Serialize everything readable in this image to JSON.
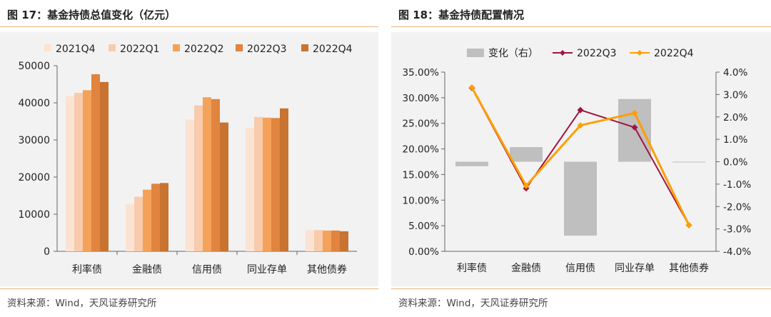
{
  "figures": [
    {
      "title": "图 17：基金持债总值变化（亿元）",
      "source": "资料来源：Wind，天风证券研究所"
    },
    {
      "title": "图 18：基金持债配置情况",
      "source": "资料来源：Wind，天风证券研究所"
    }
  ],
  "chart_data": [
    {
      "type": "bar",
      "title": "基金持债总值变化（亿元）",
      "categories": [
        "利率债",
        "金融债",
        "信用债",
        "同业存单",
        "其他债券"
      ],
      "ylim": [
        0,
        50000
      ],
      "yticks": [
        "0",
        "10000",
        "20000",
        "30000",
        "40000",
        "50000"
      ],
      "grid": false,
      "legend": "top",
      "series": [
        {
          "name": "2021Q4",
          "color": "#FBE3D3",
          "values": [
            41800,
            12700,
            35500,
            33200,
            5700
          ]
        },
        {
          "name": "2022Q1",
          "color": "#F8CBAD",
          "values": [
            42700,
            14700,
            39300,
            36200,
            5700
          ]
        },
        {
          "name": "2022Q2",
          "color": "#F4A25A",
          "values": [
            43400,
            16600,
            41500,
            36000,
            5600
          ]
        },
        {
          "name": "2022Q3",
          "color": "#E0843F",
          "values": [
            47700,
            18200,
            41000,
            35900,
            5600
          ]
        },
        {
          "name": "2022Q4",
          "color": "#C8732F",
          "values": [
            45600,
            18400,
            34700,
            38500,
            5400
          ]
        }
      ]
    },
    {
      "type": "line",
      "title": "基金持债配置情况",
      "categories": [
        "利率债",
        "金融债",
        "信用债",
        "同业存单",
        "其他债券"
      ],
      "ylim": [
        0,
        35
      ],
      "yticks": [
        "0.00%",
        "5.00%",
        "10.00%",
        "15.00%",
        "20.00%",
        "25.00%",
        "30.00%",
        "35.00%"
      ],
      "y2lim": [
        -4,
        4
      ],
      "y2ticks": [
        "-4.0%",
        "-3.0%",
        "-2.0%",
        "-1.0%",
        "0.0%",
        "1.0%",
        "2.0%",
        "3.0%",
        "4.0%"
      ],
      "grid": false,
      "legend": "top",
      "series": [
        {
          "name": "变化（右）",
          "type": "bar",
          "axis": "right",
          "color": "#BFBFBF",
          "values": [
            -0.2,
            0.65,
            -3.3,
            2.8,
            0.0
          ]
        },
        {
          "name": "2022Q3",
          "type": "line",
          "axis": "left",
          "color": "#A0153E",
          "values": [
            31.9,
            12.3,
            27.6,
            24.2,
            5.1
          ]
        },
        {
          "name": "2022Q4",
          "type": "line",
          "axis": "left",
          "color": "#FF9F00",
          "values": [
            32.0,
            12.8,
            24.6,
            27.0,
            5.1
          ]
        }
      ]
    }
  ]
}
